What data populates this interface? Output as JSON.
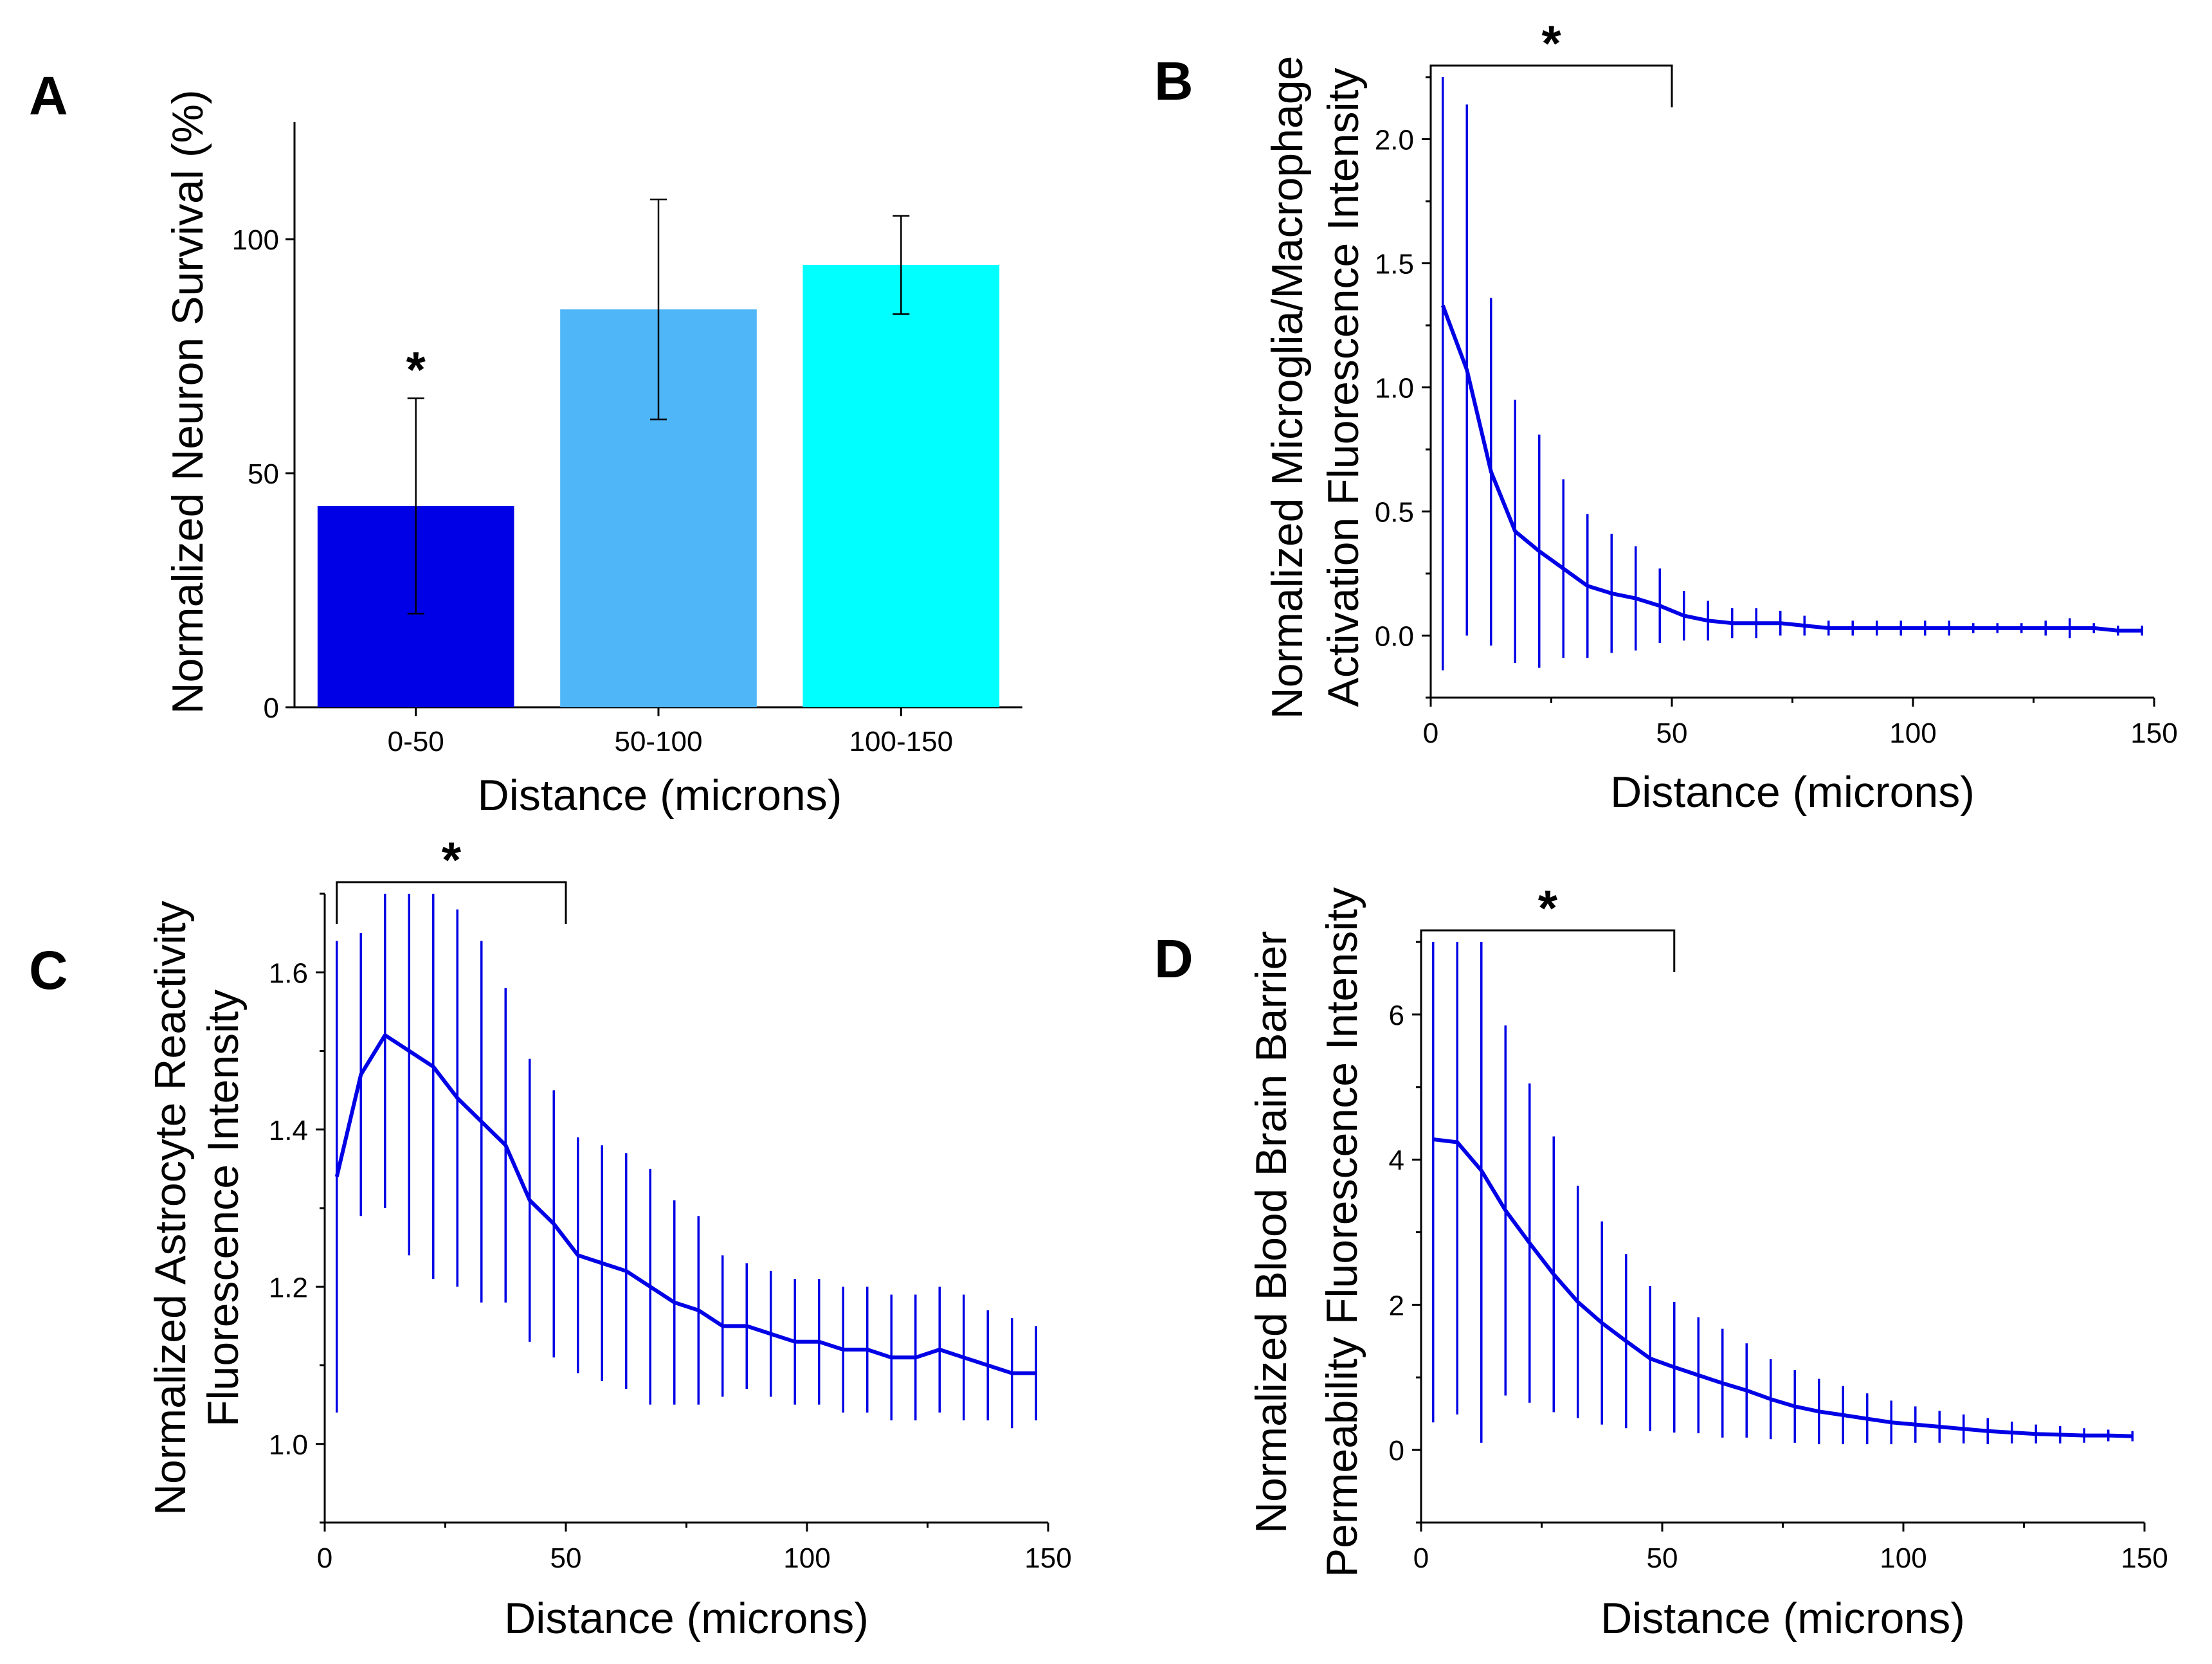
{
  "chart_data": [
    {
      "panel": "A",
      "type": "bar",
      "title": "",
      "xlabel": "Distance (microns)",
      "ylabel": "Normalized Neuron Survival (%)",
      "ylim": [
        0,
        125
      ],
      "yticks": [
        0,
        50,
        100
      ],
      "categories": [
        "0-50",
        "50-100",
        "100-150"
      ],
      "values": [
        43,
        85,
        94.5
      ],
      "errors": [
        23,
        23.5,
        10.5
      ],
      "colors": [
        "#0000e6",
        "#4fb6f7",
        "#00ffff"
      ],
      "significance": [
        {
          "category": "0-50",
          "label": "*"
        }
      ]
    },
    {
      "panel": "B",
      "type": "line",
      "title": "",
      "xlabel": "Distance (microns)",
      "ylabel": [
        "Normalized Microglia/Macrophage",
        "Activation Fluorescence Intensity"
      ],
      "xlim": [
        0,
        150
      ],
      "ylim": [
        -0.25,
        2.25
      ],
      "xticks": [
        0,
        50,
        100,
        150
      ],
      "yticks": [
        0.0,
        0.5,
        1.0,
        1.5,
        2.0
      ],
      "ytick_labels": [
        "0.0",
        "0.5",
        "1.0",
        "1.5",
        "2.0"
      ],
      "color": "#0000e6",
      "x": [
        2.5,
        7.5,
        12.5,
        17.5,
        22.5,
        27.5,
        32.5,
        37.5,
        42.5,
        47.5,
        52.5,
        57.5,
        62.5,
        67.5,
        72.5,
        77.5,
        82.5,
        87.5,
        92.5,
        97.5,
        102.5,
        107.5,
        112.5,
        117.5,
        122.5,
        127.5,
        132.5,
        137.5,
        142.5,
        147.5
      ],
      "y": [
        1.33,
        1.07,
        0.66,
        0.42,
        0.34,
        0.27,
        0.2,
        0.17,
        0.15,
        0.12,
        0.08,
        0.06,
        0.05,
        0.05,
        0.05,
        0.04,
        0.03,
        0.03,
        0.03,
        0.03,
        0.03,
        0.03,
        0.03,
        0.03,
        0.03,
        0.03,
        0.03,
        0.03,
        0.02,
        0.02
      ],
      "err": [
        1.47,
        1.07,
        0.7,
        0.53,
        0.47,
        0.36,
        0.29,
        0.24,
        0.21,
        0.15,
        0.1,
        0.08,
        0.06,
        0.06,
        0.05,
        0.04,
        0.03,
        0.03,
        0.03,
        0.03,
        0.03,
        0.03,
        0.02,
        0.02,
        0.02,
        0.03,
        0.04,
        0.02,
        0.02,
        0.02
      ],
      "significance": {
        "x_start": 0,
        "x_end": 50,
        "label": "*"
      }
    },
    {
      "panel": "C",
      "type": "line",
      "title": "",
      "xlabel": "Distance (microns)",
      "ylabel": [
        "Normalized Astrocyte Reactivity",
        "Fluorescence Intensity"
      ],
      "xlim": [
        0,
        150
      ],
      "ylim": [
        0.9,
        1.7
      ],
      "xticks": [
        0,
        50,
        100,
        150
      ],
      "yticks": [
        1.0,
        1.2,
        1.4,
        1.6
      ],
      "ytick_labels": [
        "1.0",
        "1.2",
        "1.4",
        "1.6"
      ],
      "color": "#0000e6",
      "x": [
        2.5,
        7.5,
        12.5,
        17.5,
        22.5,
        27.5,
        32.5,
        37.5,
        42.5,
        47.5,
        52.5,
        57.5,
        62.5,
        67.5,
        72.5,
        77.5,
        82.5,
        87.5,
        92.5,
        97.5,
        102.5,
        107.5,
        112.5,
        117.5,
        122.5,
        127.5,
        132.5,
        137.5,
        142.5,
        147.5
      ],
      "y": [
        1.34,
        1.47,
        1.52,
        1.5,
        1.48,
        1.44,
        1.41,
        1.38,
        1.31,
        1.28,
        1.24,
        1.23,
        1.22,
        1.2,
        1.18,
        1.17,
        1.15,
        1.15,
        1.14,
        1.13,
        1.13,
        1.12,
        1.12,
        1.11,
        1.11,
        1.12,
        1.11,
        1.1,
        1.09,
        1.09
      ],
      "err": [
        0.3,
        0.18,
        0.22,
        0.26,
        0.27,
        0.24,
        0.23,
        0.2,
        0.18,
        0.17,
        0.15,
        0.15,
        0.15,
        0.15,
        0.13,
        0.12,
        0.09,
        0.08,
        0.08,
        0.08,
        0.08,
        0.08,
        0.08,
        0.08,
        0.08,
        0.08,
        0.08,
        0.07,
        0.07,
        0.06
      ],
      "significance": {
        "x_start": 2.5,
        "x_end": 50,
        "label": "*"
      }
    },
    {
      "panel": "D",
      "type": "line",
      "title": "",
      "xlabel": "Distance (microns)",
      "ylabel": [
        "Normalized Blood Brain Barrier",
        "Permeability Fluorescence Intensity"
      ],
      "xlim": [
        0,
        150
      ],
      "ylim": [
        -1,
        7
      ],
      "xticks": [
        0,
        50,
        100,
        150
      ],
      "yticks": [
        0,
        2,
        4,
        6
      ],
      "ytick_labels": [
        "0",
        "2",
        "4",
        "6"
      ],
      "color": "#0000e6",
      "x": [
        2.5,
        7.5,
        12.5,
        17.5,
        22.5,
        27.5,
        32.5,
        37.5,
        42.5,
        47.5,
        52.5,
        57.5,
        62.5,
        67.5,
        72.5,
        77.5,
        82.5,
        87.5,
        92.5,
        97.5,
        102.5,
        107.5,
        112.5,
        117.5,
        122.5,
        127.5,
        132.5,
        137.5,
        142.5,
        147.5
      ],
      "y": [
        4.28,
        4.24,
        3.85,
        3.3,
        2.85,
        2.42,
        2.04,
        1.75,
        1.5,
        1.26,
        1.14,
        1.03,
        0.92,
        0.82,
        0.7,
        0.6,
        0.53,
        0.48,
        0.43,
        0.38,
        0.35,
        0.32,
        0.29,
        0.26,
        0.24,
        0.22,
        0.21,
        0.2,
        0.2,
        0.19
      ],
      "err": [
        3.9,
        3.75,
        3.75,
        2.55,
        2.2,
        1.9,
        1.6,
        1.4,
        1.2,
        1.0,
        0.9,
        0.8,
        0.75,
        0.65,
        0.55,
        0.5,
        0.45,
        0.4,
        0.35,
        0.3,
        0.25,
        0.22,
        0.2,
        0.18,
        0.15,
        0.13,
        0.12,
        0.1,
        0.08,
        0.07
      ],
      "significance": {
        "x_start": 0,
        "x_end": 52.5,
        "label": "*"
      }
    }
  ]
}
